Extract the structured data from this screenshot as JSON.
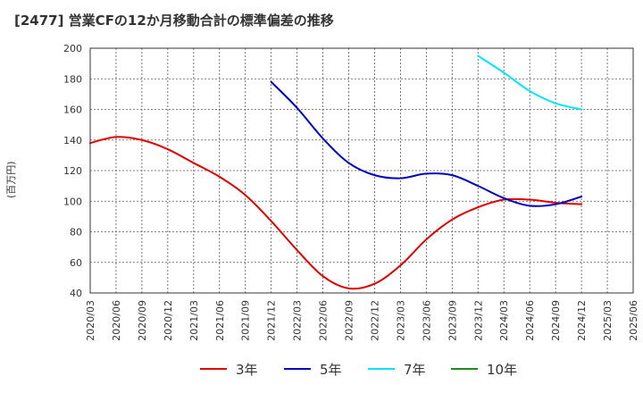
{
  "chart_data": {
    "type": "line",
    "title": "[2477]  営業CFの12か月移動合計の標準偏差の推移",
    "ylabel": "(百万円)",
    "xlabel": "",
    "ylim": [
      40,
      200
    ],
    "yticks": [
      40,
      60,
      80,
      100,
      120,
      140,
      160,
      180,
      200
    ],
    "xticks": [
      "2020/03",
      "2020/06",
      "2020/09",
      "2020/12",
      "2021/03",
      "2021/06",
      "2021/09",
      "2021/12",
      "2022/03",
      "2022/06",
      "2022/09",
      "2022/12",
      "2023/03",
      "2023/06",
      "2023/09",
      "2023/12",
      "2024/03",
      "2024/06",
      "2024/09",
      "2024/12",
      "2025/03",
      "2025/06"
    ],
    "grid": true,
    "legend_position": "bottom",
    "series": [
      {
        "name": "3年",
        "color": "#e00000",
        "x": [
          "2020/03",
          "2020/06",
          "2020/09",
          "2020/12",
          "2021/03",
          "2021/06",
          "2021/09",
          "2021/12",
          "2022/03",
          "2022/06",
          "2022/09",
          "2022/12",
          "2023/03",
          "2023/06",
          "2023/09",
          "2023/12",
          "2024/03",
          "2024/06",
          "2024/09",
          "2024/12"
        ],
        "values": [
          138,
          142,
          140,
          134,
          125,
          116,
          104,
          87,
          68,
          51,
          43,
          46,
          58,
          75,
          88,
          96,
          101,
          101,
          99,
          98
        ]
      },
      {
        "name": "5年",
        "color": "#0000c0",
        "x": [
          "2021/12",
          "2022/03",
          "2022/06",
          "2022/09",
          "2022/12",
          "2023/03",
          "2023/06",
          "2023/09",
          "2023/12",
          "2024/03",
          "2024/06",
          "2024/09",
          "2024/12"
        ],
        "values": [
          178,
          161,
          141,
          125,
          117,
          115,
          118,
          117,
          110,
          102,
          97,
          98,
          103
        ]
      },
      {
        "name": "7年",
        "color": "#00e5ff",
        "x": [
          "2023/12",
          "2024/03",
          "2024/06",
          "2024/09",
          "2024/12"
        ],
        "values": [
          195,
          184,
          172,
          164,
          160
        ]
      },
      {
        "name": "10年",
        "color": "#1e8c1e",
        "x": [],
        "values": []
      }
    ]
  }
}
